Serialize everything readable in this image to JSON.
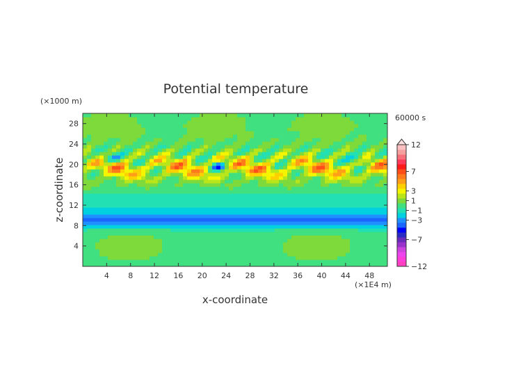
{
  "chart_data": {
    "type": "heatmap",
    "title": "Potential temperature",
    "xlabel": "x-coordinate",
    "ylabel": "z-coordinate",
    "x_unit": "(×1E4 m)",
    "y_unit": "(×1000 m)",
    "time_label": "60000 s",
    "xlim": [
      0,
      51
    ],
    "ylim": [
      0,
      30
    ],
    "x_ticks": [
      4,
      8,
      12,
      16,
      20,
      24,
      28,
      32,
      36,
      40,
      44,
      48
    ],
    "y_ticks": [
      4,
      8,
      12,
      16,
      20,
      24,
      28
    ],
    "colorbar": {
      "levels": [
        -12,
        -11,
        -10,
        -9,
        -8,
        -7,
        -6,
        -5,
        -4,
        -3,
        -2,
        -1,
        0,
        1,
        2,
        3,
        4,
        5,
        6,
        7,
        8,
        9,
        10,
        11,
        12
      ],
      "tick_labels": [
        "12",
        "7",
        "3",
        "1",
        "−1",
        "−3",
        "−7",
        "−12"
      ],
      "tick_values": [
        12,
        7,
        3,
        1,
        -1,
        -3,
        -7,
        -12
      ],
      "colors": [
        "#ff40c0",
        "#ff3ed8",
        "#ee44ee",
        "#cc44dd",
        "#9933cc",
        "#6a2bbd",
        "#2b2bc4",
        "#0000ff",
        "#1a66ff",
        "#1e90ff",
        "#00d0e0",
        "#22e0b4",
        "#40e080",
        "#7ed93a",
        "#b8e61a",
        "#f5f500",
        "#ffd000",
        "#ff9e19",
        "#ff7a1a",
        "#ff4d1a",
        "#ff1a1a",
        "#ff3a5a",
        "#f76f78",
        "#f59f9f",
        "#fcc0c0"
      ],
      "overflow_top": true
    },
    "field_description": "Layered field: warm band (about +3 to +7) between z=16 and z=23, cold blob (about -3) near z=9, near-neutral (about 0 to +1) elsewhere; wave-like streaks through the upper half.",
    "grid": false,
    "legend": "colorbar-right"
  }
}
